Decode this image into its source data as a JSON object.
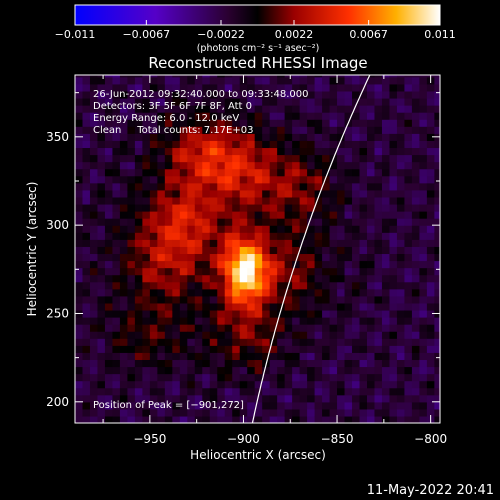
{
  "chart_data": {
    "type": "heatmap",
    "title": "Reconstructed RHESSI Image",
    "xlabel": "Heliocentric X (arcsec)",
    "ylabel": "Heliocentric Y (arcsec)",
    "xlim": [
      -990,
      -795
    ],
    "ylim": [
      188,
      385
    ],
    "x_ticks": [
      -950,
      -900,
      -850,
      -800
    ],
    "x_tick_labels": [
      "−950",
      "−900",
      "−850",
      "−800"
    ],
    "y_ticks": [
      200,
      250,
      300,
      350
    ],
    "y_tick_labels": [
      "200",
      "250",
      "300",
      "350"
    ],
    "colorbar": {
      "range": [
        -0.011,
        0.011
      ],
      "ticks": [
        -0.011,
        -0.0067,
        -0.0022,
        0.0022,
        0.0067,
        0.011
      ],
      "tick_labels": [
        "−0.011",
        "−0.0067",
        "−0.0022",
        "0.0022",
        "0.0067",
        "0.011"
      ],
      "unit_label": "(photons cm⁻² s⁻¹ asec⁻²)",
      "colors": [
        "#0000ff",
        "#7a00aa",
        "#000000",
        "#a00000",
        "#ff5000",
        "#ffd400",
        "#ffffff"
      ]
    },
    "annotations": [
      "26-Jun-2012 09:32:40.000 to 09:33:48.000",
      "Detectors: 3F 5F 6F 7F 8F, Att 0",
      "Energy Range: 6.0 - 12.0 keV",
      "Clean     Total counts: 7.17E+03"
    ],
    "peak_label": "Position of Peak = [−901,272]",
    "peak": {
      "x": -901,
      "y": 272,
      "value": 0.011
    },
    "secondary_sources": [
      {
        "x": -935,
        "y": 300,
        "value": 0.0045
      },
      {
        "x": -925,
        "y": 340,
        "value": 0.004
      },
      {
        "x": -905,
        "y": 330,
        "value": 0.004
      },
      {
        "x": -945,
        "y": 275,
        "value": 0.003
      },
      {
        "x": -875,
        "y": 320,
        "value": 0.003
      },
      {
        "x": -880,
        "y": 270,
        "value": 0.0025
      },
      {
        "x": -955,
        "y": 235,
        "value": 0.0022
      },
      {
        "x": -900,
        "y": 235,
        "value": 0.0025
      }
    ],
    "limb": "solar limb (white curve)",
    "grid": false
  },
  "footer": {
    "timestamp": "11-May-2022 20:41"
  }
}
